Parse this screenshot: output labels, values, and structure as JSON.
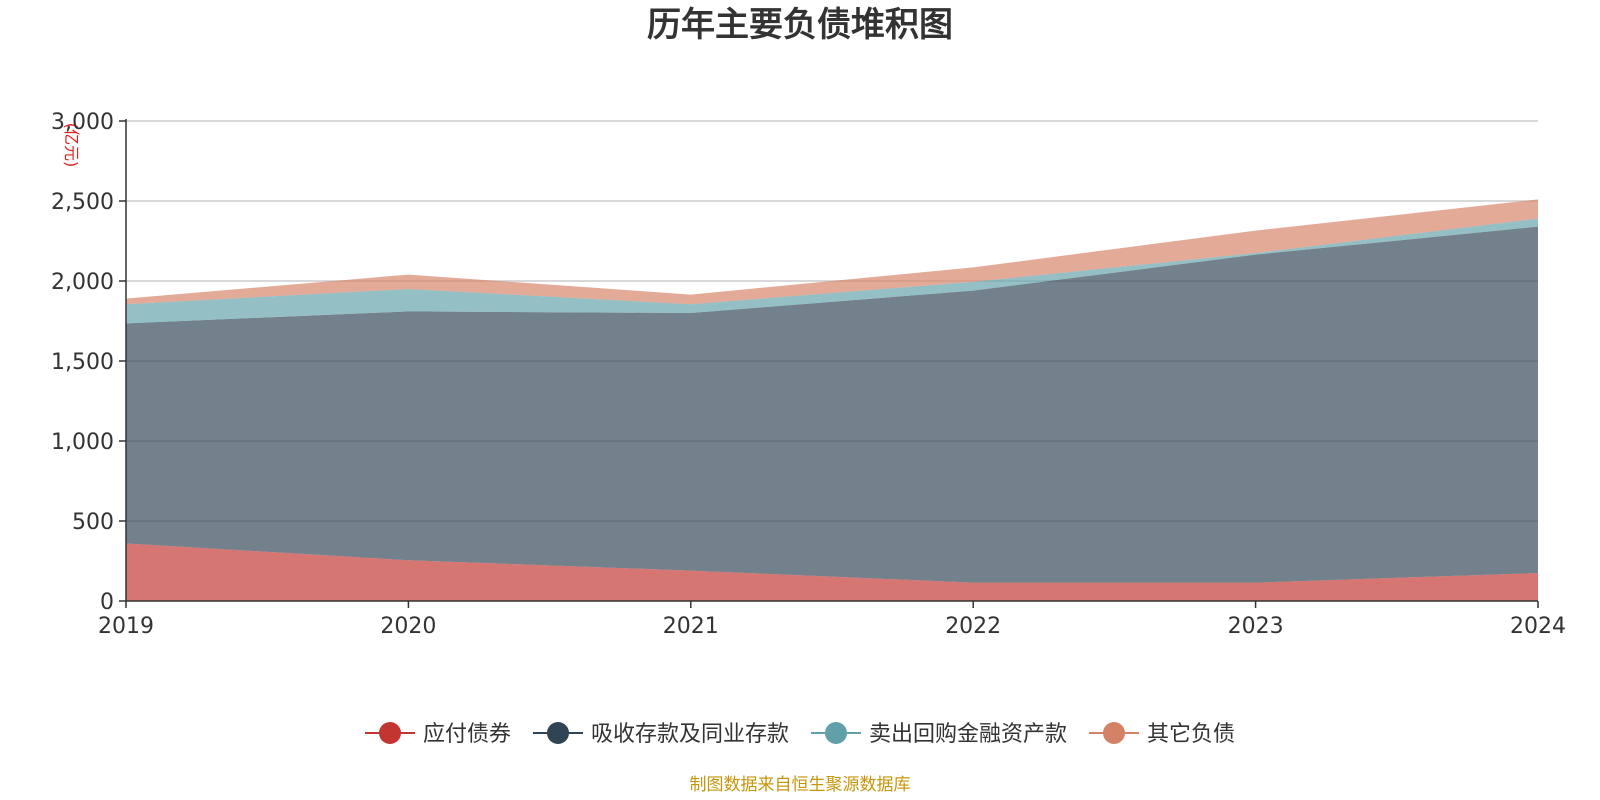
{
  "chart_data": {
    "type": "area",
    "stacked": true,
    "title": "历年主要负债堆积图",
    "unit_label": "(亿元)",
    "x": [
      "2019",
      "2020",
      "2021",
      "2022",
      "2023",
      "2024"
    ],
    "ylim": [
      0,
      3000
    ],
    "yticks": [
      0,
      500,
      1000,
      1500,
      2000,
      2500,
      3000
    ],
    "ytick_labels": [
      "0",
      "500",
      "1,000",
      "1,500",
      "2,000",
      "2,500",
      "3,000"
    ],
    "grid": true,
    "legend_position": "bottom",
    "series": [
      {
        "name": "应付债券",
        "color": "#c23531",
        "values": [
          360,
          255,
          190,
          115,
          115,
          175
        ]
      },
      {
        "name": "吸收存款及同业存款",
        "color": "#2f4554",
        "values": [
          1375,
          1555,
          1610,
          1825,
          2050,
          2165
        ]
      },
      {
        "name": "卖出回购金融资产款",
        "color": "#61a0a8",
        "values": [
          120,
          140,
          55,
          55,
          10,
          50
        ]
      },
      {
        "name": "其它负债",
        "color": "#d48265",
        "values": [
          35,
          90,
          60,
          90,
          140,
          120
        ]
      }
    ],
    "source": "制图数据来自恒生聚源数据库"
  }
}
